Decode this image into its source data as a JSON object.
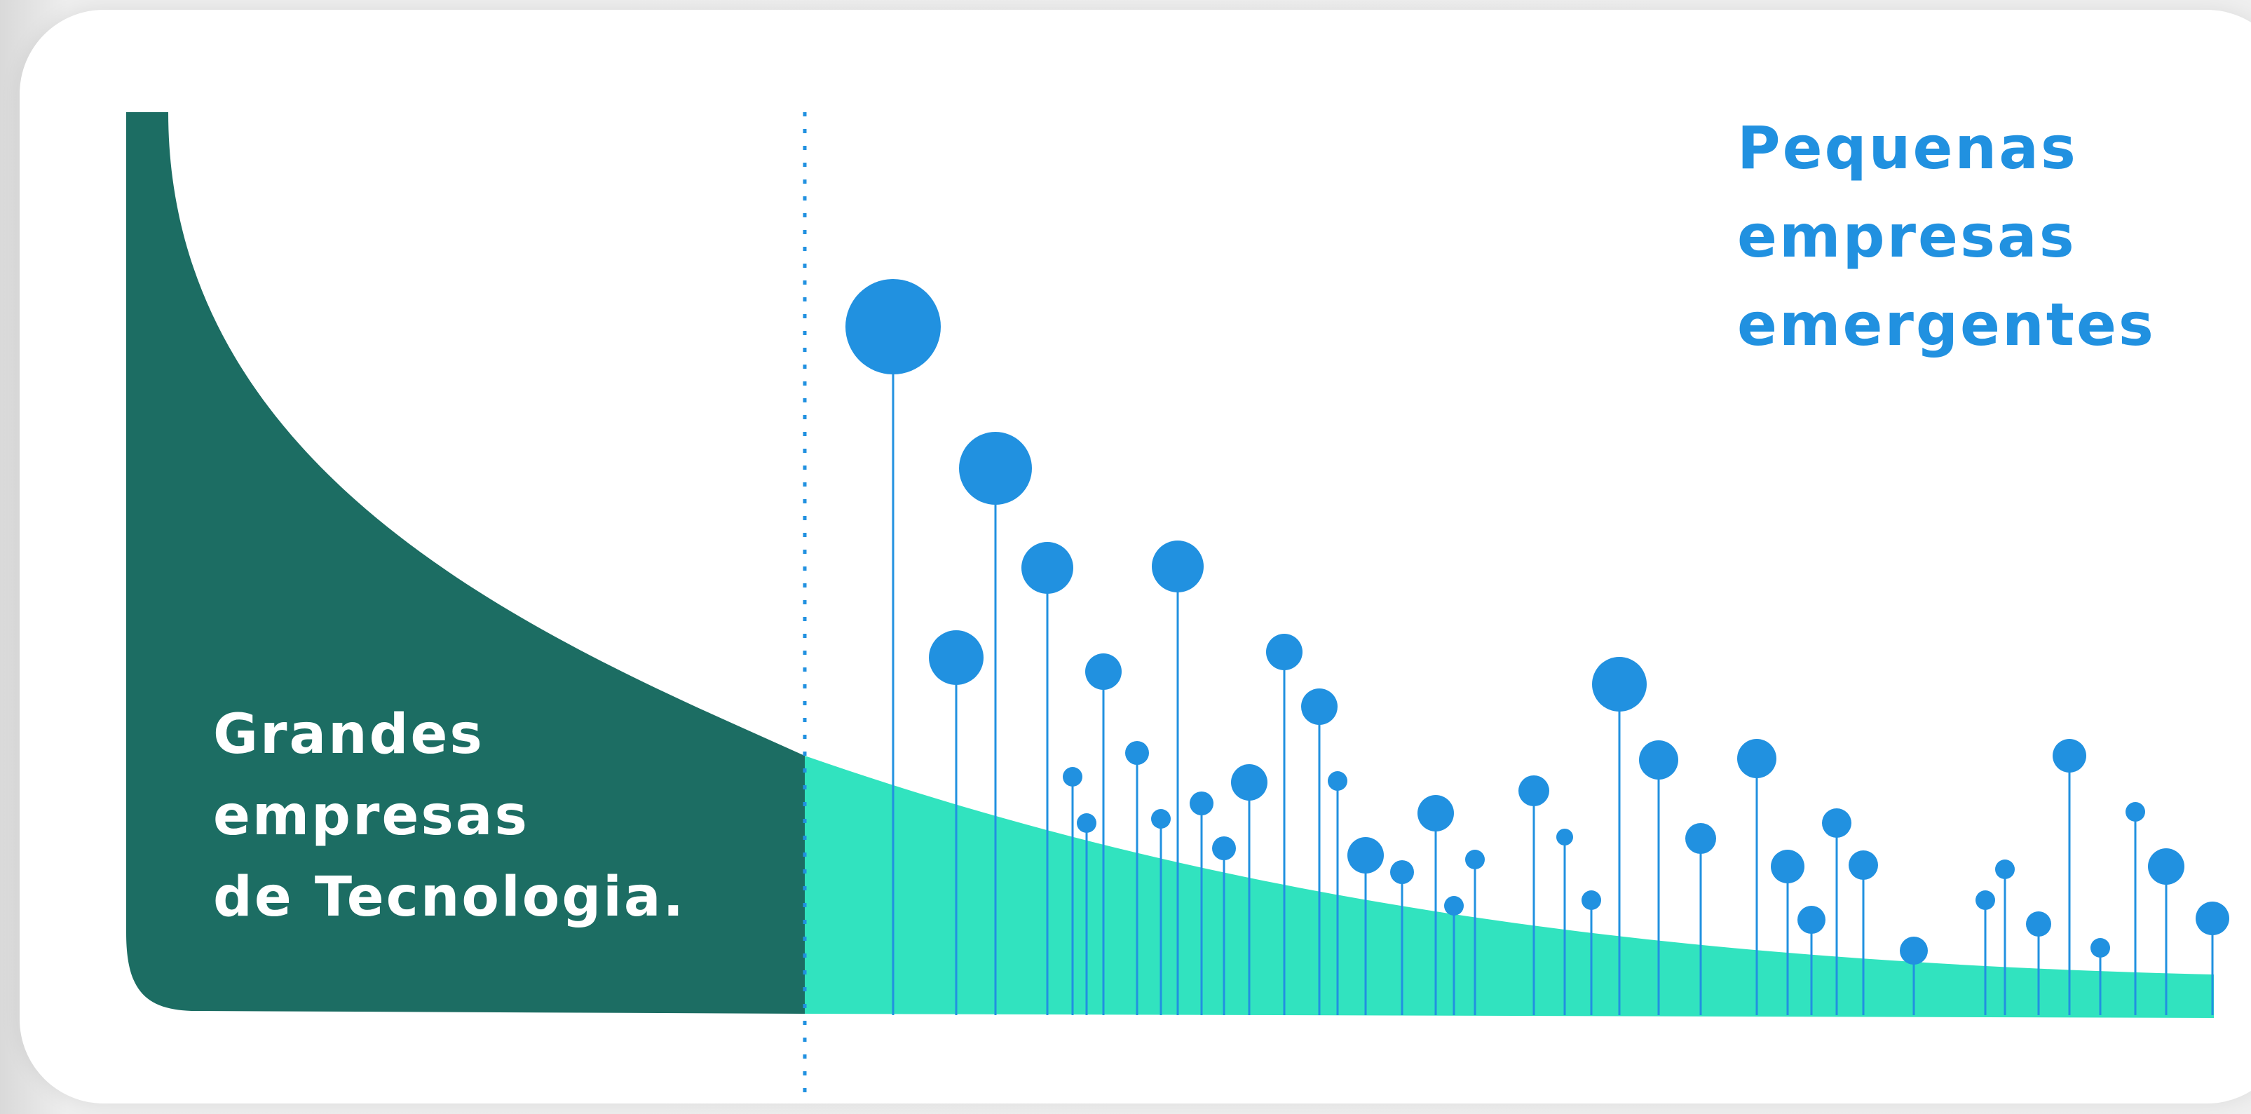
{
  "labels": {
    "big_tech": [
      "Grandes",
      "empresas",
      "de Tecnologia."
    ],
    "startups": [
      "Pequenas",
      "empresas",
      "emergentes"
    ]
  },
  "colors": {
    "big_tech_area": "#1c6d63",
    "startup_area": "#31e3bf",
    "pin": "#2191e0",
    "divider": "#2191e0"
  },
  "icons": {
    "pin": "circle-pin-icon"
  }
}
